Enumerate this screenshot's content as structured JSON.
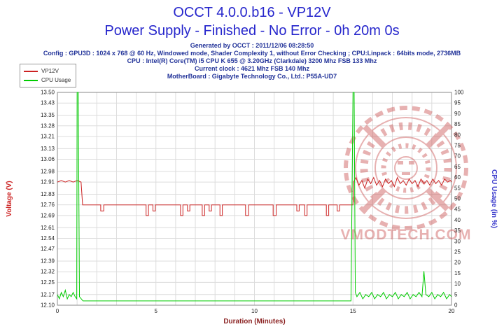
{
  "header": {
    "title": "OCCT 4.0.0.b16 - VP12V",
    "subtitle": "Power Supply - Finished - No Error - 0h 20m 0s"
  },
  "info": {
    "generated": "Generated by OCCT : 2011/12/06 08:28:50",
    "config": "Config : GPU3D : 1024 x 768 @ 60 Hz, Windowed mode, Shader Complexity 1, without Error Checking ; CPU:Linpack : 64bits mode, 2736MB",
    "cpu": "CPU : Intel(R) Core(TM) i5 CPU K 655 @ 3.20GHz (Clarkdale) 3200 Mhz FSB 133 Mhz",
    "clock": "Current clock : 4621 Mhz FSB 140 Mhz",
    "motherboard": "MotherBoard : Gigabyte Technology Co., Ltd.: P55A-UD7"
  },
  "watermark": {
    "text": "VMODTECH.COM"
  },
  "colors": {
    "title_blue": "#2626cc",
    "info_blue": "#223399",
    "voltage_red": "#cc2222",
    "cpu_green": "#00cc00",
    "duration_maroon": "#8b2222",
    "right_axis_blue": "#3a3acc",
    "watermark_red": "#cc5555"
  },
  "chart_data": {
    "type": "line",
    "title": "OCCT 4.0.0.b16 - VP12V",
    "xlabel": "Duration (Minutes)",
    "ylabel_left": "Voltage (V)",
    "ylabel_right": "CPU Usage (in %)",
    "grid": true,
    "legend_position": "top-left",
    "xlim": [
      0,
      20
    ],
    "x_minor_step": 1,
    "x_major_ticks": [
      0,
      5,
      10,
      15,
      20
    ],
    "ylim_left": [
      12.1,
      13.5
    ],
    "y_ticks_left": [
      "12.10",
      "12.17",
      "12.25",
      "12.32",
      "12.39",
      "12.47",
      "12.54",
      "12.61",
      "12.69",
      "12.76",
      "12.83",
      "12.91",
      "12.98",
      "13.06",
      "13.13",
      "13.21",
      "13.28",
      "13.35",
      "13.43",
      "13.50"
    ],
    "ylim_right": [
      0,
      100
    ],
    "y_ticks_right": [
      0,
      5,
      10,
      15,
      20,
      25,
      30,
      35,
      40,
      45,
      50,
      55,
      60,
      65,
      70,
      75,
      80,
      85,
      90,
      95,
      100
    ],
    "series": [
      {
        "name": "VP12V",
        "color": "#cc2222",
        "axis": "left",
        "points": [
          [
            0,
            12.91
          ],
          [
            0.2,
            12.92
          ],
          [
            0.4,
            12.91
          ],
          [
            0.6,
            12.92
          ],
          [
            0.8,
            12.91
          ],
          [
            1.0,
            12.92
          ],
          [
            1.2,
            12.91
          ],
          [
            1.28,
            12.76
          ],
          [
            2.2,
            12.76
          ],
          [
            2.2,
            12.72
          ],
          [
            2.35,
            12.72
          ],
          [
            2.35,
            12.76
          ],
          [
            4.5,
            12.76
          ],
          [
            4.5,
            12.69
          ],
          [
            4.62,
            12.69
          ],
          [
            4.62,
            12.76
          ],
          [
            4.85,
            12.76
          ],
          [
            4.85,
            12.72
          ],
          [
            4.97,
            12.72
          ],
          [
            4.97,
            12.76
          ],
          [
            6.25,
            12.76
          ],
          [
            6.25,
            12.69
          ],
          [
            6.37,
            12.69
          ],
          [
            6.37,
            12.76
          ],
          [
            6.6,
            12.76
          ],
          [
            6.6,
            12.72
          ],
          [
            6.72,
            12.72
          ],
          [
            6.72,
            12.76
          ],
          [
            7.35,
            12.76
          ],
          [
            7.35,
            12.69
          ],
          [
            7.47,
            12.69
          ],
          [
            7.47,
            12.76
          ],
          [
            7.7,
            12.76
          ],
          [
            7.7,
            12.72
          ],
          [
            7.82,
            12.72
          ],
          [
            7.82,
            12.76
          ],
          [
            8.25,
            12.76
          ],
          [
            8.25,
            12.69
          ],
          [
            8.37,
            12.69
          ],
          [
            8.37,
            12.76
          ],
          [
            9.55,
            12.76
          ],
          [
            9.55,
            12.69
          ],
          [
            9.7,
            12.69
          ],
          [
            9.7,
            12.76
          ],
          [
            10.95,
            12.76
          ],
          [
            10.95,
            12.69
          ],
          [
            11.1,
            12.69
          ],
          [
            11.1,
            12.76
          ],
          [
            12.15,
            12.76
          ],
          [
            12.15,
            12.72
          ],
          [
            12.27,
            12.72
          ],
          [
            12.27,
            12.76
          ],
          [
            12.55,
            12.76
          ],
          [
            12.55,
            12.69
          ],
          [
            12.67,
            12.69
          ],
          [
            12.67,
            12.76
          ],
          [
            13.65,
            12.76
          ],
          [
            13.65,
            12.69
          ],
          [
            13.77,
            12.69
          ],
          [
            13.77,
            12.76
          ],
          [
            14.2,
            12.76
          ],
          [
            14.2,
            12.72
          ],
          [
            14.32,
            12.72
          ],
          [
            14.32,
            12.76
          ],
          [
            15.0,
            12.76
          ],
          [
            15.03,
            12.91
          ],
          [
            15.15,
            12.94
          ],
          [
            15.3,
            12.89
          ],
          [
            15.45,
            12.92
          ],
          [
            15.6,
            12.87
          ],
          [
            15.75,
            12.93
          ],
          [
            15.9,
            12.9
          ],
          [
            16.05,
            12.94
          ],
          [
            16.2,
            12.89
          ],
          [
            16.35,
            12.92
          ],
          [
            16.5,
            12.88
          ],
          [
            16.65,
            12.93
          ],
          [
            16.8,
            12.9
          ],
          [
            16.95,
            12.92
          ],
          [
            17.1,
            12.88
          ],
          [
            17.25,
            12.94
          ],
          [
            17.4,
            12.9
          ],
          [
            17.55,
            12.92
          ],
          [
            17.7,
            12.89
          ],
          [
            17.85,
            12.93
          ],
          [
            18.0,
            12.9
          ],
          [
            18.15,
            12.92
          ],
          [
            18.3,
            12.88
          ],
          [
            18.45,
            12.93
          ],
          [
            18.6,
            12.9
          ],
          [
            18.75,
            12.92
          ],
          [
            18.9,
            12.89
          ],
          [
            19.05,
            12.93
          ],
          [
            19.2,
            12.9
          ],
          [
            19.35,
            12.92
          ],
          [
            19.5,
            12.89
          ],
          [
            19.65,
            12.93
          ],
          [
            19.8,
            12.91
          ],
          [
            19.95,
            12.92
          ],
          [
            20,
            12.91
          ]
        ]
      },
      {
        "name": "CPU Usage",
        "color": "#00cc00",
        "axis": "right",
        "points": [
          [
            0,
            5
          ],
          [
            0.1,
            3
          ],
          [
            0.2,
            6
          ],
          [
            0.3,
            4
          ],
          [
            0.4,
            7
          ],
          [
            0.5,
            3
          ],
          [
            0.6,
            5
          ],
          [
            0.7,
            4
          ],
          [
            0.8,
            6
          ],
          [
            0.9,
            4
          ],
          [
            0.98,
            3
          ],
          [
            1.0,
            100
          ],
          [
            1.06,
            100
          ],
          [
            1.12,
            4
          ],
          [
            1.3,
            2
          ],
          [
            2,
            2
          ],
          [
            3,
            2
          ],
          [
            4,
            2
          ],
          [
            5,
            2
          ],
          [
            6,
            2
          ],
          [
            7,
            2
          ],
          [
            8,
            2
          ],
          [
            9,
            2
          ],
          [
            10,
            2
          ],
          [
            11,
            2
          ],
          [
            12,
            2
          ],
          [
            13,
            2
          ],
          [
            14,
            2
          ],
          [
            14.9,
            2
          ],
          [
            15.0,
            100
          ],
          [
            15.06,
            100
          ],
          [
            15.12,
            6
          ],
          [
            15.2,
            4
          ],
          [
            15.35,
            6
          ],
          [
            15.5,
            3
          ],
          [
            15.65,
            5
          ],
          [
            15.8,
            4
          ],
          [
            15.95,
            6
          ],
          [
            16.1,
            3
          ],
          [
            16.25,
            5
          ],
          [
            16.4,
            4
          ],
          [
            16.55,
            6
          ],
          [
            16.7,
            3
          ],
          [
            16.85,
            5
          ],
          [
            17.0,
            4
          ],
          [
            17.15,
            6
          ],
          [
            17.3,
            3
          ],
          [
            17.45,
            5
          ],
          [
            17.6,
            4
          ],
          [
            17.75,
            6
          ],
          [
            17.9,
            3
          ],
          [
            18.05,
            5
          ],
          [
            18.2,
            4
          ],
          [
            18.35,
            6
          ],
          [
            18.5,
            4
          ],
          [
            18.6,
            16
          ],
          [
            18.7,
            5
          ],
          [
            18.85,
            4
          ],
          [
            19.0,
            6
          ],
          [
            19.15,
            3
          ],
          [
            19.3,
            5
          ],
          [
            19.45,
            4
          ],
          [
            19.6,
            6
          ],
          [
            19.75,
            3
          ],
          [
            19.9,
            5
          ],
          [
            20,
            4
          ]
        ]
      }
    ]
  }
}
